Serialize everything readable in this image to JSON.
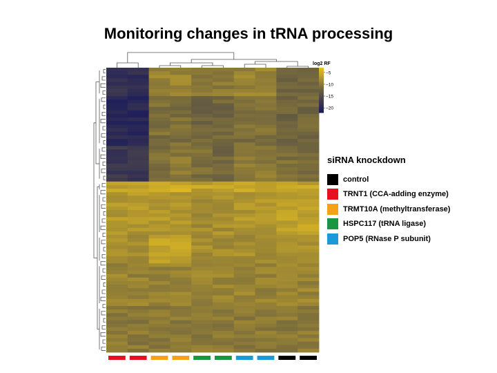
{
  "slide": {
    "title": "Monitoring changes in tRNA processing"
  },
  "legend": {
    "title": "siRNA knockdown",
    "items": [
      {
        "label": "control",
        "color": "#000000"
      },
      {
        "label": "TRNT1 (CCA-adding enzyme)",
        "color": "#e8101f"
      },
      {
        "label": "TRMT10A (methyltransferase)",
        "color": "#f5a21a"
      },
      {
        "label": "HSPC117 (tRNA ligase)",
        "color": "#1a9640"
      },
      {
        "label": "POP5 (RNase P subunit)",
        "color": "#1a9ad6"
      }
    ]
  },
  "chart_data": {
    "type": "heatmap",
    "title": "Monitoring changes in tRNA processing",
    "colorbar": {
      "title": "log2 RF",
      "ticks": [
        -5,
        -10,
        -15,
        -20
      ],
      "range": [
        -22,
        -3
      ],
      "colors": [
        "#1a1a5c",
        "#6a6040",
        "#e8c020"
      ]
    },
    "columns": [
      {
        "group": "TRNT1"
      },
      {
        "group": "TRNT1"
      },
      {
        "group": "TRMT10A"
      },
      {
        "group": "TRMT10A"
      },
      {
        "group": "HSPC117"
      },
      {
        "group": "HSPC117"
      },
      {
        "group": "POP5"
      },
      {
        "group": "POP5"
      },
      {
        "group": "control"
      },
      {
        "group": "control"
      }
    ],
    "group_colors": {
      "control": "#000000",
      "TRNT1": "#e8101f",
      "TRMT10A": "#f5a21a",
      "HSPC117": "#1a9640",
      "POP5": "#1a9ad6"
    },
    "row_clusters": [
      {
        "rows": 8,
        "values": [
          -19,
          -19,
          -9,
          -9,
          -10,
          -10,
          -9,
          -9,
          -12,
          -12
        ]
      },
      {
        "rows": 14,
        "values": [
          -20,
          -20,
          -11,
          -11,
          -12,
          -12,
          -11,
          -11,
          -12,
          -12
        ]
      },
      {
        "rows": 10,
        "values": [
          -18,
          -18,
          -11,
          -10,
          -11,
          -12,
          -10,
          -10,
          -11,
          -11
        ]
      },
      {
        "rows": 3,
        "values": [
          -6,
          -6,
          -5,
          -5,
          -6,
          -6,
          -5,
          -5,
          -6,
          -6
        ]
      },
      {
        "rows": 12,
        "values": [
          -7,
          -7,
          -7,
          -7,
          -8,
          -8,
          -7,
          -7,
          -6,
          -6
        ]
      },
      {
        "rows": 8,
        "values": [
          -8,
          -8,
          -6,
          -6,
          -8,
          -8,
          -8,
          -8,
          -8,
          -8
        ]
      },
      {
        "rows": 12,
        "values": [
          -9,
          -9,
          -9,
          -9,
          -9,
          -9,
          -9,
          -9,
          -9,
          -9
        ]
      },
      {
        "rows": 13,
        "values": [
          -10,
          -10,
          -10,
          -10,
          -10,
          -10,
          -10,
          -10,
          -10,
          -10
        ]
      }
    ]
  }
}
